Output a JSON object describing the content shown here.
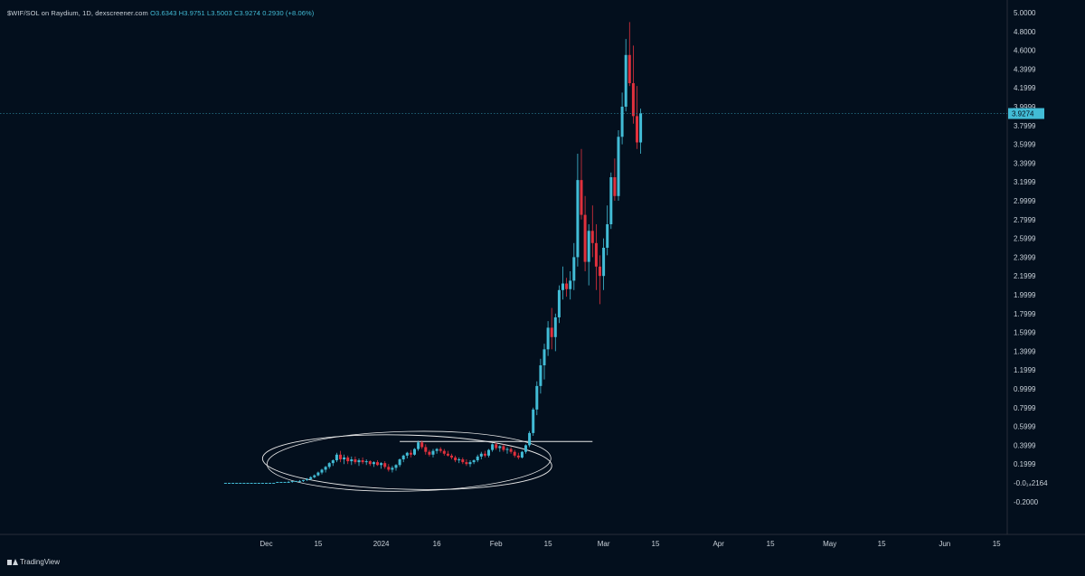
{
  "header": {
    "symbol": "$WIF/SOL on Raydium, 1D, dexscreener.com",
    "ohlc": "O3.6343 H3.9751 L3.5003 C3.9274 0.2930 (+8.06%)"
  },
  "footer": {
    "brand": "TradingView"
  },
  "colors": {
    "background": "#030f1d",
    "up": "#42bcd6",
    "down": "#e0313d",
    "axis_text": "#c9d1d9",
    "price_line": "#2f8fa6",
    "annotation": "#e8e8e8"
  },
  "chart_data": {
    "type": "candlestick",
    "title": "",
    "xlabel": "",
    "ylabel": "",
    "ylim": [
      -0.3,
      5.0
    ],
    "y_ticks": [
      "5.0000",
      "4.8000",
      "4.6000",
      "4.3999",
      "4.1999",
      "3.9999",
      "3.7999",
      "3.5999",
      "3.3999",
      "3.1999",
      "2.9999",
      "2.7999",
      "2.5999",
      "2.3999",
      "2.1999",
      "1.9999",
      "1.7999",
      "1.5999",
      "1.3999",
      "1.1999",
      "0.9999",
      "0.7999",
      "0.5999",
      "0.3999",
      "0.1999",
      "-0.0₁₄2164",
      "-0.2000"
    ],
    "x_ticks": [
      {
        "label": "Dec",
        "date": "2023-12-01"
      },
      {
        "label": "15",
        "date": "2023-12-15"
      },
      {
        "label": "2024",
        "date": "2024-01-01"
      },
      {
        "label": "16",
        "date": "2024-01-16"
      },
      {
        "label": "Feb",
        "date": "2024-02-01"
      },
      {
        "label": "15",
        "date": "2024-02-15"
      },
      {
        "label": "Mar",
        "date": "2024-03-01"
      },
      {
        "label": "15",
        "date": "2024-03-15"
      },
      {
        "label": "Apr",
        "date": "2024-04-01"
      },
      {
        "label": "15",
        "date": "2024-04-15"
      },
      {
        "label": "May",
        "date": "2024-05-01"
      },
      {
        "label": "15",
        "date": "2024-05-15"
      },
      {
        "label": "Jun",
        "date": "2024-06-01"
      },
      {
        "label": "15",
        "date": "2024-06-15"
      }
    ],
    "last_price": "3.9274",
    "last_price_value": 3.9274,
    "first_date": "2023-11-20",
    "candles": [
      [
        0.0,
        0.0,
        0.0,
        0.0
      ],
      [
        0.0,
        0.0,
        0.0,
        0.0
      ],
      [
        0.0,
        0.0,
        0.0,
        0.0
      ],
      [
        0.0,
        0.0,
        0.0,
        0.0
      ],
      [
        0.0,
        0.0,
        0.0,
        0.0
      ],
      [
        0.0,
        0.0,
        0.0,
        0.0
      ],
      [
        0.0,
        0.0,
        0.0,
        0.0
      ],
      [
        0.0,
        0.0,
        0.0,
        0.0
      ],
      [
        0.0,
        0.0,
        0.0,
        0.0
      ],
      [
        0.0,
        0.0,
        0.0,
        0.0
      ],
      [
        0.0,
        0.0,
        0.0,
        0.0
      ],
      [
        0.0,
        0.0,
        0.0,
        0.0
      ],
      [
        0.0,
        0.0,
        0.0,
        0.0
      ],
      [
        0.0,
        0.0,
        0.0,
        0.0
      ],
      [
        0.0,
        0.01,
        0.0,
        0.01
      ],
      [
        0.0,
        0.01,
        0.0,
        0.01
      ],
      [
        0.01,
        0.01,
        0.0,
        0.01
      ],
      [
        0.01,
        0.02,
        0.0,
        0.01
      ],
      [
        0.01,
        0.02,
        0.0,
        0.02
      ],
      [
        0.02,
        0.02,
        0.01,
        0.02
      ],
      [
        0.02,
        0.03,
        0.01,
        0.02
      ],
      [
        0.02,
        0.03,
        0.01,
        0.03
      ],
      [
        0.03,
        0.05,
        0.02,
        0.04
      ],
      [
        0.04,
        0.07,
        0.03,
        0.06
      ],
      [
        0.06,
        0.09,
        0.05,
        0.08
      ],
      [
        0.08,
        0.12,
        0.07,
        0.11
      ],
      [
        0.11,
        0.15,
        0.09,
        0.14
      ],
      [
        0.14,
        0.18,
        0.11,
        0.17
      ],
      [
        0.17,
        0.22,
        0.15,
        0.21
      ],
      [
        0.21,
        0.25,
        0.18,
        0.24
      ],
      [
        0.24,
        0.32,
        0.22,
        0.3
      ],
      [
        0.3,
        0.34,
        0.22,
        0.25
      ],
      [
        0.25,
        0.3,
        0.2,
        0.27
      ],
      [
        0.27,
        0.29,
        0.2,
        0.23
      ],
      [
        0.23,
        0.28,
        0.19,
        0.25
      ],
      [
        0.25,
        0.28,
        0.2,
        0.22
      ],
      [
        0.22,
        0.26,
        0.18,
        0.24
      ],
      [
        0.24,
        0.27,
        0.2,
        0.22
      ],
      [
        0.22,
        0.25,
        0.19,
        0.23
      ],
      [
        0.23,
        0.24,
        0.18,
        0.2
      ],
      [
        0.2,
        0.23,
        0.17,
        0.22
      ],
      [
        0.22,
        0.24,
        0.18,
        0.19
      ],
      [
        0.19,
        0.22,
        0.15,
        0.21
      ],
      [
        0.21,
        0.23,
        0.15,
        0.17
      ],
      [
        0.17,
        0.2,
        0.12,
        0.14
      ],
      [
        0.14,
        0.18,
        0.11,
        0.16
      ],
      [
        0.16,
        0.2,
        0.13,
        0.19
      ],
      [
        0.19,
        0.26,
        0.17,
        0.25
      ],
      [
        0.25,
        0.3,
        0.22,
        0.29
      ],
      [
        0.29,
        0.33,
        0.26,
        0.32
      ],
      [
        0.32,
        0.35,
        0.27,
        0.3
      ],
      [
        0.3,
        0.37,
        0.29,
        0.36
      ],
      [
        0.36,
        0.45,
        0.34,
        0.43
      ],
      [
        0.43,
        0.45,
        0.36,
        0.38
      ],
      [
        0.38,
        0.41,
        0.3,
        0.33
      ],
      [
        0.33,
        0.35,
        0.28,
        0.3
      ],
      [
        0.3,
        0.36,
        0.27,
        0.34
      ],
      [
        0.34,
        0.37,
        0.31,
        0.36
      ],
      [
        0.36,
        0.38,
        0.32,
        0.34
      ],
      [
        0.34,
        0.36,
        0.29,
        0.31
      ],
      [
        0.31,
        0.34,
        0.28,
        0.29
      ],
      [
        0.29,
        0.31,
        0.25,
        0.27
      ],
      [
        0.27,
        0.29,
        0.22,
        0.24
      ],
      [
        0.24,
        0.27,
        0.21,
        0.25
      ],
      [
        0.25,
        0.27,
        0.2,
        0.22
      ],
      [
        0.22,
        0.25,
        0.18,
        0.2
      ],
      [
        0.2,
        0.24,
        0.17,
        0.22
      ],
      [
        0.22,
        0.25,
        0.2,
        0.24
      ],
      [
        0.24,
        0.3,
        0.22,
        0.28
      ],
      [
        0.28,
        0.33,
        0.25,
        0.31
      ],
      [
        0.31,
        0.34,
        0.27,
        0.29
      ],
      [
        0.29,
        0.36,
        0.27,
        0.35
      ],
      [
        0.35,
        0.42,
        0.33,
        0.41
      ],
      [
        0.41,
        0.43,
        0.35,
        0.37
      ],
      [
        0.37,
        0.4,
        0.33,
        0.39
      ],
      [
        0.39,
        0.41,
        0.33,
        0.35
      ],
      [
        0.35,
        0.38,
        0.31,
        0.36
      ],
      [
        0.36,
        0.38,
        0.31,
        0.33
      ],
      [
        0.33,
        0.35,
        0.27,
        0.29
      ],
      [
        0.29,
        0.32,
        0.25,
        0.27
      ],
      [
        0.27,
        0.34,
        0.26,
        0.33
      ],
      [
        0.33,
        0.41,
        0.31,
        0.4
      ],
      [
        0.4,
        0.55,
        0.38,
        0.53
      ],
      [
        0.53,
        0.8,
        0.5,
        0.78
      ],
      [
        0.78,
        1.08,
        0.72,
        1.03
      ],
      [
        1.03,
        1.32,
        0.95,
        1.25
      ],
      [
        1.25,
        1.48,
        1.1,
        1.42
      ],
      [
        1.42,
        1.72,
        1.35,
        1.65
      ],
      [
        1.65,
        1.86,
        1.42,
        1.55
      ],
      [
        1.55,
        1.8,
        1.4,
        1.76
      ],
      [
        1.76,
        2.1,
        1.7,
        2.05
      ],
      [
        2.05,
        2.3,
        1.95,
        2.12
      ],
      [
        2.12,
        2.18,
        1.98,
        2.06
      ],
      [
        2.06,
        2.25,
        1.95,
        2.15
      ],
      [
        2.15,
        2.55,
        2.05,
        2.4
      ],
      [
        2.4,
        3.5,
        2.3,
        3.22
      ],
      [
        3.22,
        3.55,
        2.8,
        2.85
      ],
      [
        2.85,
        3.05,
        2.25,
        2.35
      ],
      [
        2.35,
        2.75,
        2.1,
        2.68
      ],
      [
        2.68,
        2.95,
        2.4,
        2.55
      ],
      [
        2.55,
        2.75,
        2.05,
        2.3
      ],
      [
        2.3,
        2.42,
        1.9,
        2.2
      ],
      [
        2.2,
        2.6,
        2.05,
        2.5
      ],
      [
        2.5,
        2.95,
        2.42,
        2.75
      ],
      [
        2.75,
        3.3,
        2.7,
        3.25
      ],
      [
        3.25,
        3.45,
        3.0,
        3.05
      ],
      [
        3.05,
        3.75,
        3.0,
        3.68
      ],
      [
        3.68,
        4.15,
        3.6,
        4.0
      ],
      [
        4.0,
        4.72,
        3.95,
        4.55
      ],
      [
        4.55,
        4.9,
        4.22,
        4.25
      ],
      [
        4.25,
        4.65,
        3.82,
        3.9
      ],
      [
        3.9,
        4.22,
        3.55,
        3.62
      ],
      [
        3.62,
        3.98,
        3.5,
        3.93
      ]
    ],
    "annotations": [
      {
        "type": "hline",
        "y": 0.44,
        "x_from_index": 47,
        "x_to_index": 99,
        "label": ""
      },
      {
        "type": "ellipse",
        "center_index": 49,
        "y": 0.22,
        "label": ""
      }
    ]
  }
}
